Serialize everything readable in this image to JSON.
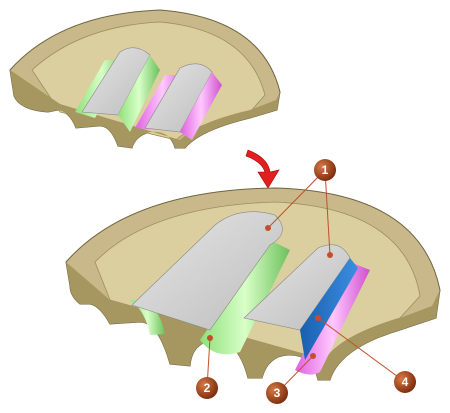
{
  "callouts": [
    {
      "label": "1"
    },
    {
      "label": "2"
    },
    {
      "label": "3"
    },
    {
      "label": "4"
    }
  ]
}
